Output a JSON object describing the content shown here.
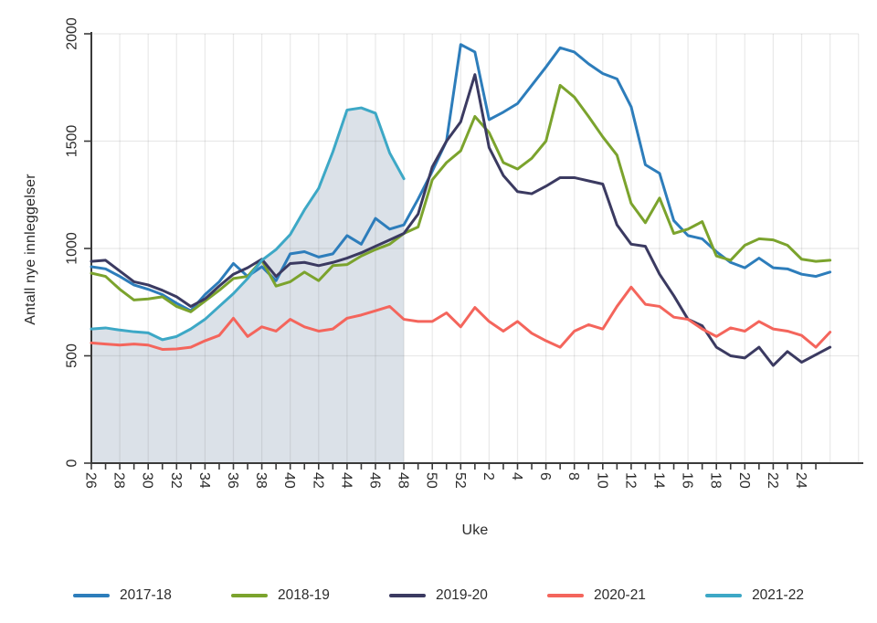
{
  "figure": {
    "ylabel": "Antall nye innleggelser",
    "xlabel": "Uke"
  },
  "chart_data": {
    "type": "line",
    "title": "",
    "xlabel": "Uke",
    "ylabel": "Antall nye innleggelser",
    "ylim": [
      0,
      2000
    ],
    "yticks": [
      0,
      500,
      1000,
      1500,
      2000
    ],
    "grid": true,
    "legend_position": "bottom",
    "x_label_every": 2,
    "categories": [
      "26",
      "27",
      "28",
      "29",
      "30",
      "31",
      "32",
      "33",
      "34",
      "35",
      "36",
      "37",
      "38",
      "39",
      "40",
      "41",
      "42",
      "43",
      "44",
      "45",
      "46",
      "47",
      "48",
      "49",
      "50",
      "51",
      "52",
      "1",
      "2",
      "3",
      "4",
      "5",
      "6",
      "7",
      "8",
      "9",
      "10",
      "11",
      "12",
      "13",
      "14",
      "15",
      "16",
      "17",
      "18",
      "19",
      "20",
      "21",
      "22",
      "23",
      "24",
      "25",
      "26"
    ],
    "shaded_series": "2021-22",
    "shade_color": "#dbe1e8",
    "axis_color": "#3a3a3a",
    "grid_color": "rgba(120,120,120,0.16)",
    "series": [
      {
        "name": "2017-18",
        "color": "#2d7dbb",
        "values": [
          915,
          905,
          870,
          830,
          810,
          785,
          745,
          710,
          785,
          845,
          930,
          870,
          915,
          850,
          975,
          985,
          960,
          975,
          1060,
          1020,
          1140,
          1090,
          1110,
          1230,
          1360,
          1500,
          1950,
          1915,
          1600,
          1635,
          1675,
          1760,
          1845,
          1935,
          1915,
          1860,
          1815,
          1790,
          1660,
          1390,
          1350,
          1130,
          1060,
          1045,
          985,
          935,
          910,
          955,
          910,
          905,
          880,
          870,
          890
        ]
      },
      {
        "name": "2018-19",
        "color": "#7ba32d",
        "values": [
          885,
          870,
          810,
          760,
          765,
          775,
          730,
          705,
          755,
          805,
          860,
          870,
          945,
          825,
          845,
          890,
          850,
          920,
          925,
          965,
          995,
          1020,
          1070,
          1100,
          1320,
          1400,
          1455,
          1615,
          1540,
          1400,
          1370,
          1420,
          1500,
          1760,
          1705,
          1615,
          1520,
          1435,
          1210,
          1120,
          1235,
          1070,
          1090,
          1125,
          965,
          945,
          1015,
          1045,
          1040,
          1015,
          950,
          940,
          945
        ]
      },
      {
        "name": "2019-20",
        "color": "#3b3a61",
        "values": [
          940,
          945,
          895,
          845,
          830,
          805,
          775,
          730,
          765,
          825,
          880,
          910,
          950,
          870,
          930,
          935,
          920,
          935,
          955,
          980,
          1010,
          1040,
          1070,
          1160,
          1380,
          1500,
          1590,
          1810,
          1470,
          1340,
          1265,
          1255,
          1290,
          1330,
          1330,
          1315,
          1300,
          1110,
          1020,
          1010,
          880,
          780,
          670,
          640,
          540,
          500,
          490,
          540,
          455,
          520,
          470,
          505,
          540
        ]
      },
      {
        "name": "2020-21",
        "color": "#f4655c",
        "values": [
          560,
          555,
          550,
          555,
          550,
          530,
          532,
          540,
          570,
          595,
          675,
          590,
          635,
          615,
          670,
          635,
          615,
          625,
          675,
          690,
          710,
          730,
          670,
          660,
          660,
          700,
          635,
          725,
          660,
          615,
          660,
          605,
          570,
          540,
          615,
          645,
          625,
          730,
          820,
          740,
          730,
          680,
          670,
          625,
          590,
          630,
          615,
          660,
          625,
          615,
          595,
          540,
          610
        ]
      },
      {
        "name": "2021-22",
        "color": "#3da8c6",
        "values": [
          625,
          630,
          620,
          612,
          607,
          575,
          590,
          625,
          670,
          730,
          790,
          860,
          945,
          995,
          1065,
          1180,
          1280,
          1450,
          1645,
          1655,
          1630,
          1445,
          1325
        ]
      }
    ]
  }
}
